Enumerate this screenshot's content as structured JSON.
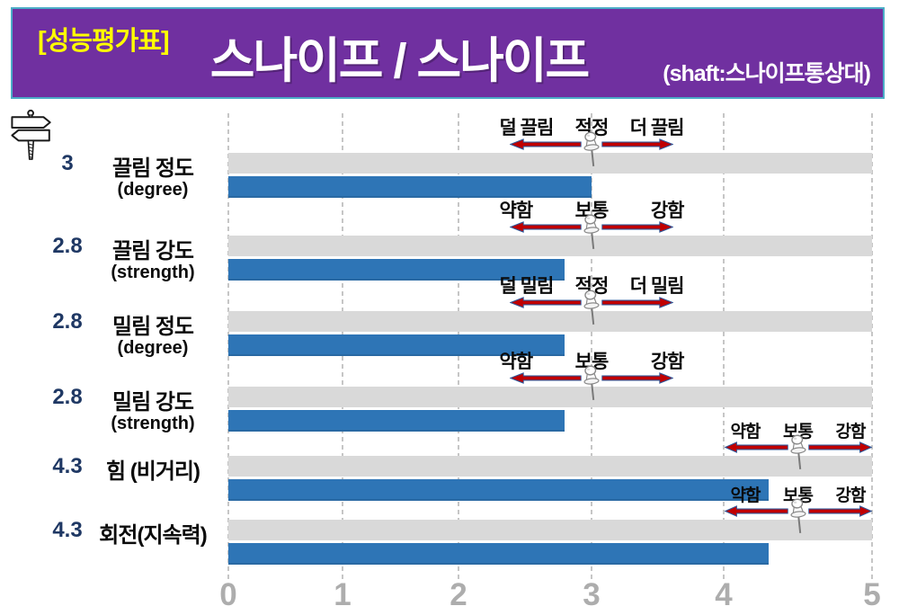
{
  "header": {
    "badge": "[성능평가표]",
    "title": "스나이프 / 스나이프",
    "subtitle": "(shaft:스나이프통상대)",
    "colors": {
      "banner_background": "#7030A0",
      "banner_border": "#4BACC6",
      "badge_text": "#FFFF00",
      "title_text": "#FFFFFF"
    }
  },
  "chart_data": {
    "type": "bar",
    "orientation": "horizontal",
    "title": "스나이프 / 스나이프 성능평가표",
    "xlim": [
      0,
      5
    ],
    "x_ticks": [
      "0",
      "1",
      "2",
      "3",
      "4",
      "5"
    ],
    "grid": true,
    "bar_color": "#2E75B6",
    "track_color": "#D9D9D9",
    "arrow_color": "#C00000",
    "value_text_color": "#1F3864",
    "categories": [
      "끌림 정도",
      "끌림 강도",
      "밀림 정도",
      "밀림 강도",
      "힘 (비거리)",
      "회전(지속력)"
    ],
    "values": [
      3,
      2.8,
      2.8,
      2.8,
      4.3,
      4.3
    ],
    "rows": [
      {
        "value_label": "3",
        "value": 3,
        "label": "끌림 정도",
        "sublabel": "(degree)",
        "annotation": {
          "left": "덜 끌림",
          "center": "적정",
          "right": "더 끌림",
          "pin_value": 3
        }
      },
      {
        "value_label": "2.8",
        "value": 2.8,
        "label": "끌림 강도",
        "sublabel": "(strength)",
        "annotation": {
          "left": "약함",
          "center": "보통",
          "right": "강함",
          "pin_value": 3
        }
      },
      {
        "value_label": "2.8",
        "value": 2.8,
        "label": "밀림 정도",
        "sublabel": "(degree)",
        "annotation": {
          "left": "덜 밀림",
          "center": "적정",
          "right": "더 밀림",
          "pin_value": 3
        }
      },
      {
        "value_label": "2.8",
        "value": 2.8,
        "label": "밀림 강도",
        "sublabel": "(strength)",
        "annotation": {
          "left": "약함",
          "center": "보통",
          "right": "강함",
          "pin_value": 3
        }
      },
      {
        "value_label": "4.3",
        "value": 4.3,
        "label": "힘 (비거리)",
        "sublabel": "",
        "annotation": {
          "left": "약함",
          "center": "보통",
          "right": "강함",
          "pin_value": 4.5
        }
      },
      {
        "value_label": "4.3",
        "value": 4.3,
        "label": "회전(지속력)",
        "sublabel": "",
        "annotation": {
          "left": "약함",
          "center": "보통",
          "right": "강함",
          "pin_value": 4.5
        }
      }
    ]
  },
  "icons": {
    "signpost": "signpost-icon",
    "pushpin": "pushpin-icon",
    "arrow_left": "arrow-left-icon",
    "arrow_right": "arrow-right-icon"
  }
}
